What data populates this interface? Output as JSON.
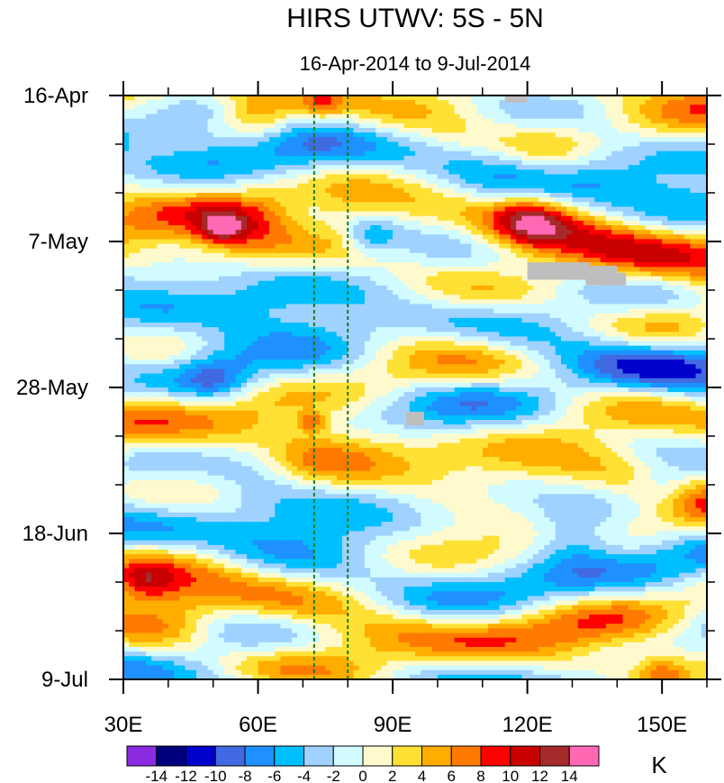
{
  "chart_data": {
    "type": "heatmap",
    "title": "HIRS UTWV: 5S - 5N",
    "subtitle": "16-Apr-2014 to 9-Jul-2014",
    "x_axis": {
      "range": [
        30,
        160
      ],
      "ticks": [
        30,
        60,
        90,
        120,
        150
      ],
      "tick_labels": [
        "30E",
        "60E",
        "90E",
        "120E",
        "150E"
      ]
    },
    "y_axis": {
      "range_days": [
        0,
        84
      ],
      "ticks_days": [
        0,
        21,
        42,
        63,
        84
      ],
      "tick_labels": [
        "16-Apr",
        "7-May",
        "28-May",
        "18-Jun",
        "9-Jul"
      ],
      "minor_step_days": 7
    },
    "reference_lines_lon": [
      72.5,
      80
    ],
    "colorbar": {
      "unit": "K",
      "labels": [
        "-14",
        "-12",
        "-10",
        "-8",
        "-6",
        "-4",
        "-2",
        "0",
        "2",
        "4",
        "6",
        "8",
        "10",
        "12",
        "14"
      ],
      "colors": [
        "#8a2be2",
        "#00007f",
        "#0000cd",
        "#4169e1",
        "#1e90ff",
        "#00bfff",
        "#a0d2ff",
        "#d1fbff",
        "#fffacd",
        "#ffe135",
        "#ffae00",
        "#ff7a00",
        "#ff0000",
        "#c80000",
        "#a52a2a",
        "#ff69b4"
      ]
    },
    "missing_color": "#bebebe",
    "field_seed": 7
  }
}
